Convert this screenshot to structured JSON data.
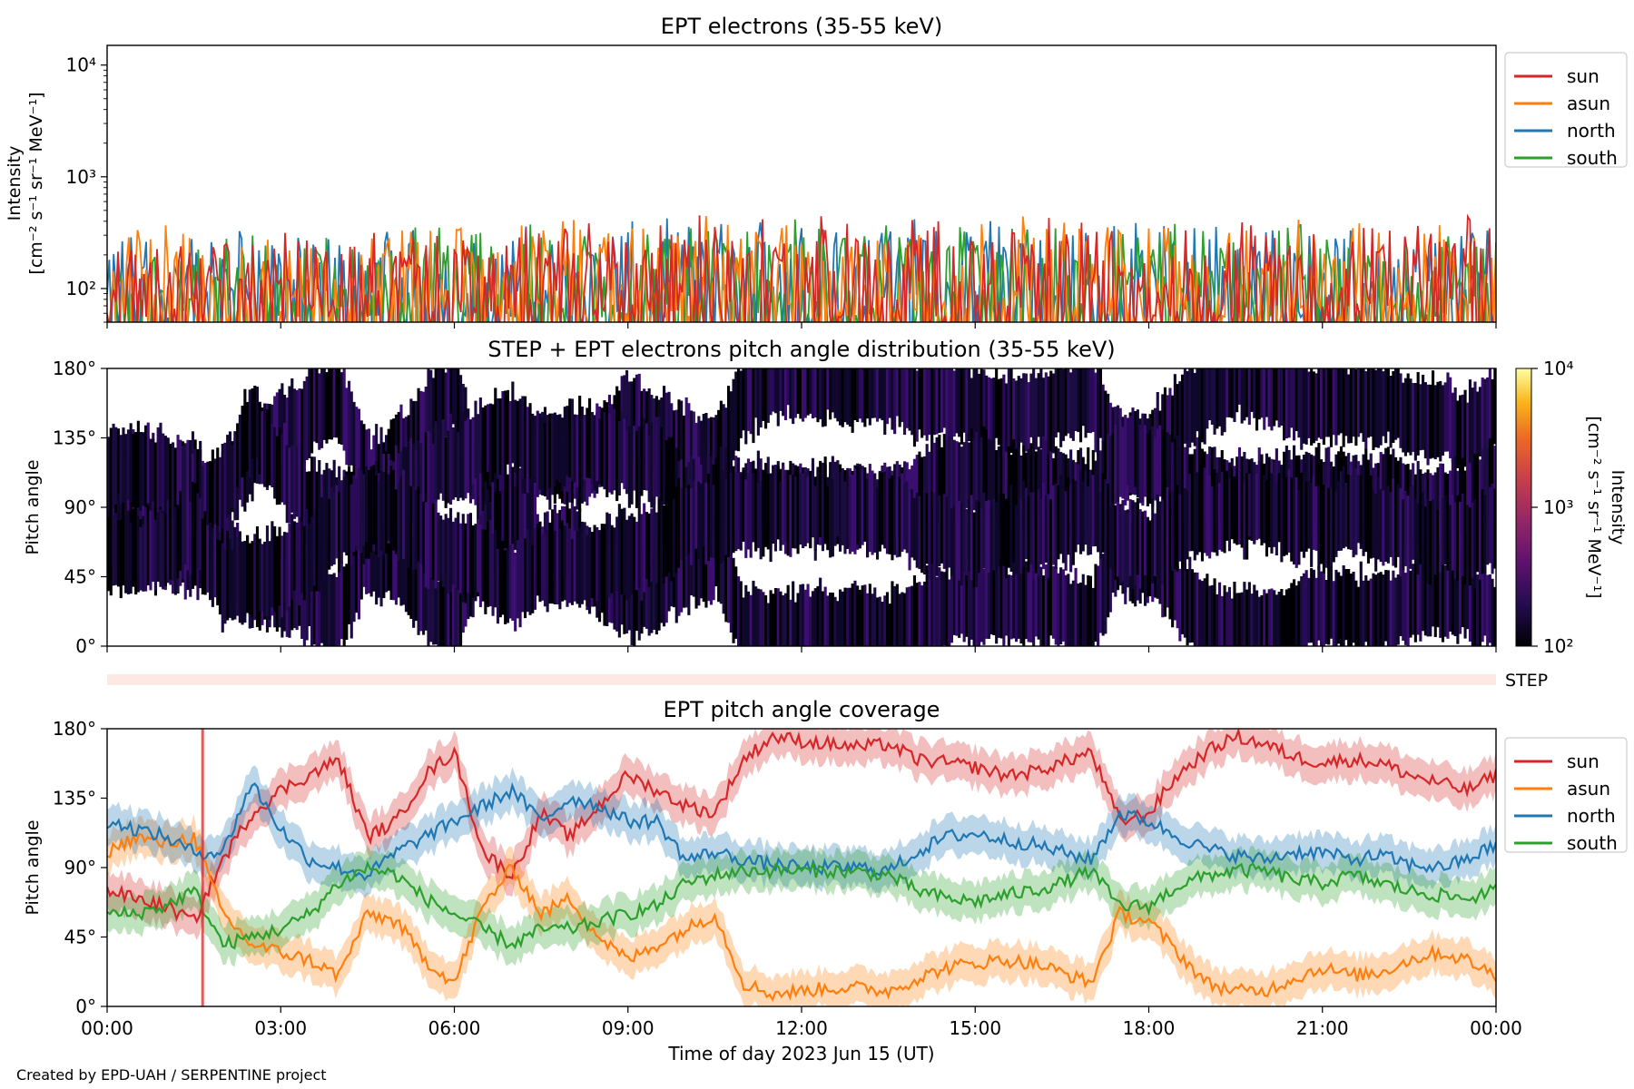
{
  "footer": "Created by EPD-UAH / SERPENTINE project",
  "colors": {
    "sun": "#d62728",
    "asun": "#ff7f0e",
    "north": "#1f77b4",
    "south": "#2ca02c",
    "step_band": "#fde9e3"
  },
  "chart_data": [
    {
      "type": "line",
      "title": "EPT electrons (35-55 keV)",
      "ylabel_lines": [
        "Intensity",
        "[cm⁻² s⁻¹ sr⁻¹ MeV⁻¹]"
      ],
      "yscale": "log",
      "ylim": [
        50,
        15000
      ],
      "yticks": [
        {
          "value": 100,
          "label": "10²"
        },
        {
          "value": 1000,
          "label": "10³"
        },
        {
          "value": 10000,
          "label": "10⁴"
        }
      ],
      "xlim_hours": [
        0,
        24
      ],
      "legend": "outside-right",
      "series": [
        {
          "name": "sun",
          "color": "#d62728",
          "hourly_peak": [
            270,
            300,
            280,
            290,
            300,
            320,
            310,
            300,
            330,
            340,
            360,
            380,
            400,
            380,
            350,
            360,
            370,
            340,
            330,
            350,
            330,
            300,
            320,
            350
          ]
        },
        {
          "name": "asun",
          "color": "#ff7f0e",
          "hourly_peak": [
            300,
            320,
            290,
            300,
            310,
            330,
            300,
            320,
            340,
            350,
            370,
            360,
            380,
            370,
            340,
            350,
            360,
            330,
            340,
            360,
            320,
            310,
            330,
            340
          ]
        },
        {
          "name": "north",
          "color": "#1f77b4",
          "hourly_peak": [
            260,
            280,
            300,
            290,
            300,
            310,
            300,
            310,
            320,
            340,
            350,
            360,
            370,
            360,
            340,
            350,
            340,
            330,
            320,
            340,
            320,
            300,
            310,
            320
          ]
        },
        {
          "name": "south",
          "color": "#2ca02c",
          "hourly_peak": [
            250,
            260,
            270,
            280,
            290,
            300,
            290,
            300,
            310,
            330,
            340,
            350,
            360,
            350,
            330,
            340,
            330,
            320,
            310,
            330,
            310,
            290,
            300,
            310
          ]
        }
      ],
      "value_range_note": ""
    },
    {
      "type": "heatmap",
      "title": "STEP + EPT electrons pitch angle distribution (35-55 keV)",
      "ylabel": "Pitch angle",
      "ylim": [
        0,
        180
      ],
      "yticks": [
        {
          "value": 0,
          "label": "0°"
        },
        {
          "value": 45,
          "label": "45°"
        },
        {
          "value": 90,
          "label": "90°"
        },
        {
          "value": 135,
          "label": "135°"
        },
        {
          "value": 180,
          "label": "180°"
        }
      ],
      "colorbar": {
        "label_lines": [
          "Intensity",
          "[cm⁻² s⁻¹ sr⁻¹ MeV⁻¹]"
        ],
        "scale": "log",
        "range": [
          100,
          10000
        ],
        "ticks": [
          {
            "value": 100,
            "label": "10²"
          },
          {
            "value": 1000,
            "label": "10³"
          },
          {
            "value": 10000,
            "label": "10⁴"
          }
        ]
      },
      "band_label": "STEP",
      "covered_bands_note": "derived from the EPT coverage panel below"
    },
    {
      "type": "line",
      "title": "EPT pitch angle coverage",
      "ylabel": "Pitch angle",
      "xlabel": "Time of day 2023 Jun 15 (UT)",
      "ylim": [
        0,
        180
      ],
      "yticks": [
        {
          "value": 0,
          "label": "0°"
        },
        {
          "value": 45,
          "label": "45°"
        },
        {
          "value": 90,
          "label": "90°"
        },
        {
          "value": 135,
          "label": "135°"
        },
        {
          "value": 180,
          "label": "180°"
        }
      ],
      "xlim_hours": [
        0,
        24
      ],
      "xticks": [
        {
          "value": 0,
          "label": "00:00"
        },
        {
          "value": 3,
          "label": "03:00"
        },
        {
          "value": 6,
          "label": "06:00"
        },
        {
          "value": 9,
          "label": "09:00"
        },
        {
          "value": 12,
          "label": "12:00"
        },
        {
          "value": 15,
          "label": "15:00"
        },
        {
          "value": 18,
          "label": "18:00"
        },
        {
          "value": 21,
          "label": "21:00"
        },
        {
          "value": 24,
          "label": "00:00"
        }
      ],
      "vertical_marker_hour": 1.65,
      "legend": "outside-right",
      "x_hours": [
        0,
        0.5,
        1,
        1.5,
        2,
        2.5,
        3,
        3.5,
        4,
        4.5,
        5,
        5.5,
        6,
        6.5,
        7,
        7.5,
        8,
        8.5,
        9,
        9.5,
        10,
        10.5,
        11,
        11.5,
        12,
        12.5,
        13,
        13.5,
        14,
        14.5,
        15,
        15.5,
        16,
        16.5,
        17,
        17.5,
        18,
        18.5,
        19,
        19.5,
        20,
        20.5,
        21,
        21.5,
        22,
        22.5,
        23,
        23.5,
        24
      ],
      "series": [
        {
          "name": "sun",
          "color": "#d62728",
          "values": [
            75,
            70,
            65,
            55,
            95,
            125,
            140,
            150,
            160,
            110,
            120,
            150,
            165,
            100,
            85,
            125,
            110,
            130,
            150,
            140,
            130,
            125,
            160,
            175,
            172,
            170,
            168,
            170,
            160,
            158,
            155,
            150,
            152,
            158,
            165,
            120,
            125,
            150,
            165,
            175,
            170,
            162,
            158,
            160,
            158,
            150,
            145,
            140,
            150
          ]
        },
        {
          "name": "asun",
          "color": "#ff7f0e",
          "values": [
            100,
            110,
            105,
            110,
            60,
            40,
            35,
            30,
            20,
            60,
            55,
            30,
            15,
            65,
            90,
            60,
            70,
            45,
            30,
            40,
            50,
            60,
            15,
            8,
            10,
            12,
            12,
            10,
            18,
            25,
            28,
            30,
            28,
            22,
            15,
            60,
            55,
            35,
            15,
            10,
            10,
            18,
            25,
            20,
            22,
            30,
            35,
            30,
            20
          ]
        },
        {
          "name": "north",
          "color": "#1f77b4",
          "values": [
            120,
            115,
            110,
            100,
            100,
            145,
            115,
            95,
            90,
            85,
            100,
            110,
            120,
            130,
            140,
            120,
            135,
            130,
            120,
            120,
            95,
            100,
            95,
            92,
            90,
            90,
            90,
            88,
            100,
            110,
            112,
            108,
            105,
            100,
            95,
            125,
            120,
            110,
            102,
            98,
            95,
            100,
            100,
            95,
            98,
            92,
            90,
            95,
            105
          ]
        },
        {
          "name": "south",
          "color": "#2ca02c",
          "values": [
            60,
            60,
            65,
            75,
            40,
            45,
            50,
            60,
            80,
            90,
            85,
            70,
            60,
            50,
            40,
            50,
            50,
            55,
            60,
            65,
            80,
            85,
            88,
            88,
            88,
            88,
            87,
            85,
            75,
            70,
            68,
            72,
            75,
            80,
            88,
            65,
            65,
            78,
            85,
            88,
            88,
            82,
            80,
            85,
            80,
            75,
            72,
            70,
            75
          ]
        }
      ]
    }
  ]
}
